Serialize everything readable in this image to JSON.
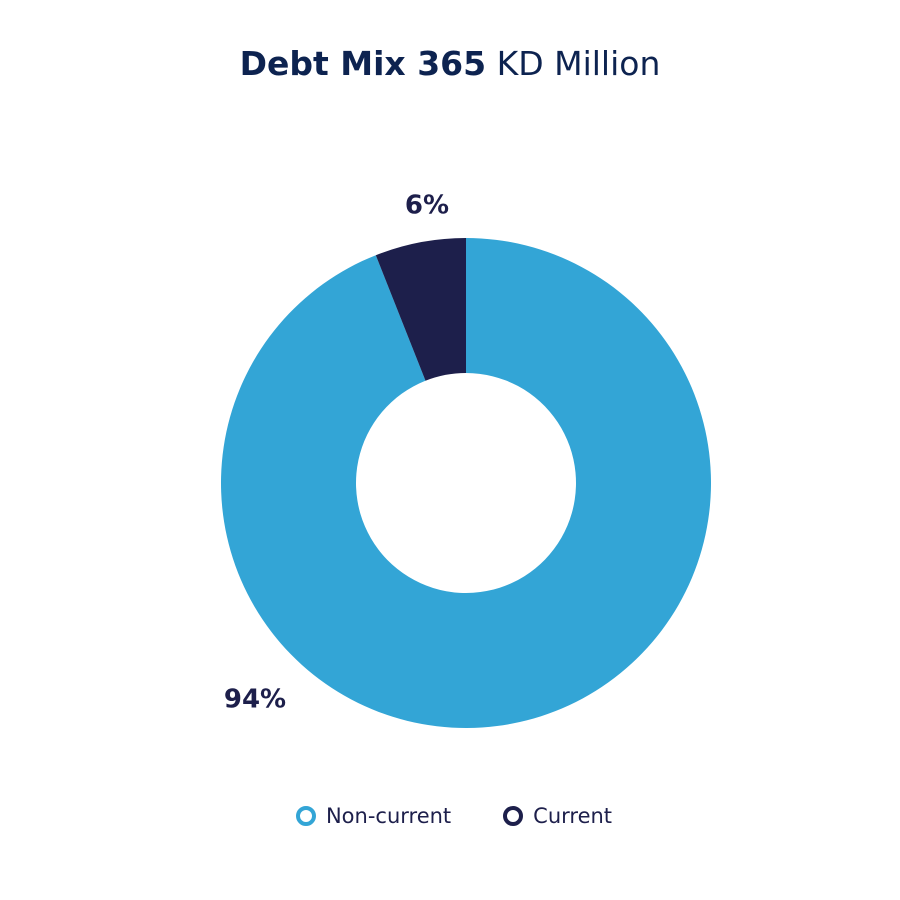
{
  "header": {
    "title_bold": "Debt Mix 365",
    "title_light": " KD Million"
  },
  "colors": {
    "title": "#0d2350",
    "label": "#1d1f4b"
  },
  "chart_data": {
    "type": "pie",
    "variant": "donut",
    "title": "Debt Mix 365 KD Million",
    "unit": "%",
    "categories": [
      "Non-current",
      "Current"
    ],
    "values": [
      94,
      6
    ],
    "labels": [
      "94%",
      "6%"
    ],
    "colors": [
      "#33a5d6",
      "#1d1f4b"
    ],
    "start_angle_deg": 0,
    "direction": "clockwise",
    "legend": "bottom-center"
  }
}
